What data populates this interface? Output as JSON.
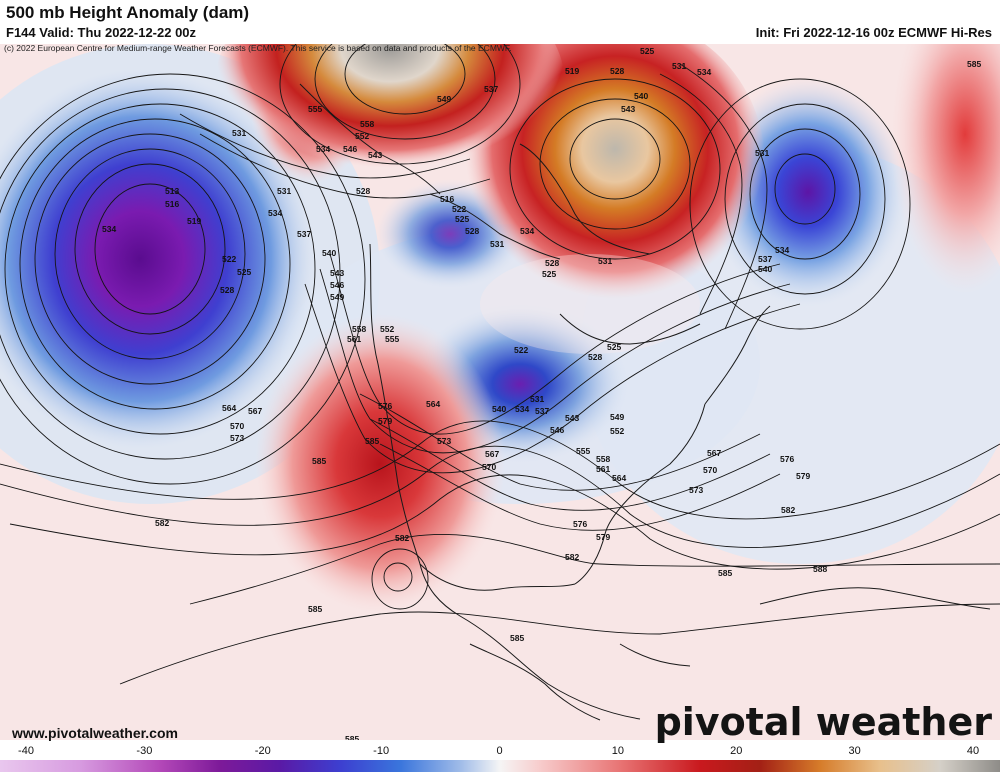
{
  "header": {
    "title": "500 mb Height Anomaly (dam)",
    "valid": "F144 Valid: Thu 2022-12-22 00z",
    "init": "Init: Fri 2022-12-16 00z ECMWF Hi-Res",
    "credit": "(c) 2022 European Centre for Medium-range Weather Forecasts (ECMWF). This service is based on data and products of the ECMWF."
  },
  "footer": {
    "website": "www.pivotalweather.com",
    "brand": "pivotal weather"
  },
  "colorbar": {
    "ticks": [
      "-40",
      "-30",
      "-20",
      "-10",
      "0",
      "10",
      "20",
      "30",
      "40"
    ],
    "min": -40,
    "max": 40
  },
  "contour_labels": [
    "531",
    "513",
    "516",
    "519",
    "534",
    "522",
    "525",
    "528",
    "564",
    "567",
    "570",
    "573",
    "582",
    "585",
    "555",
    "558",
    "546",
    "543",
    "549",
    "537",
    "552",
    "540",
    "576",
    "579",
    "561",
    "588"
  ],
  "colors": {
    "negative_strong": "#6d0fa8",
    "negative_mid": "#1f5fcf",
    "negative_weak": "#c8d7ee",
    "positive_weak": "#f7d9d9",
    "positive_mid": "#d42a2a",
    "positive_strong": "#c86a1a",
    "positive_max": "#a8a5a0"
  }
}
